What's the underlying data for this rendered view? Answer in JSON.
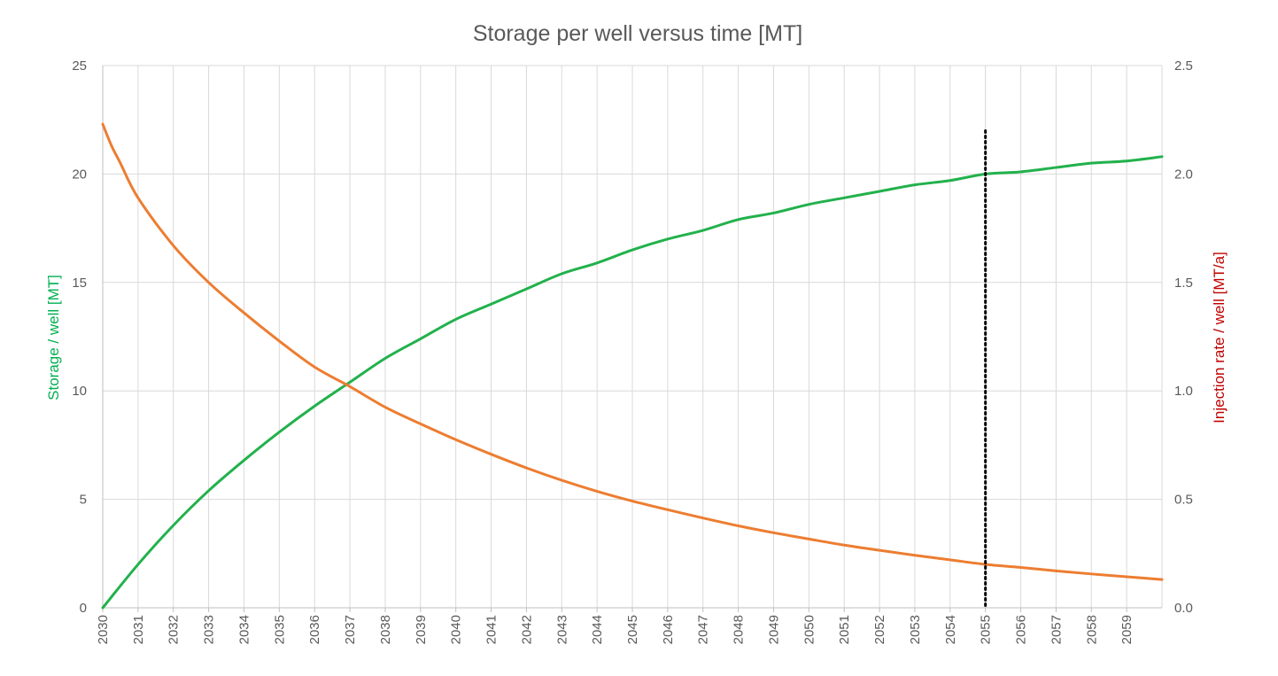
{
  "chart_data": {
    "type": "line",
    "title": "Storage per well versus time [MT]",
    "xlim": [
      2030,
      2060
    ],
    "x_tick_labels": [
      "2030",
      "2031",
      "2032",
      "2033",
      "2034",
      "2035",
      "2036",
      "2037",
      "2038",
      "2039",
      "2040",
      "2041",
      "2042",
      "2043",
      "2044",
      "2045",
      "2046",
      "2047",
      "2048",
      "2049",
      "2050",
      "2051",
      "2052",
      "2053",
      "2054",
      "2055",
      "2056",
      "2057",
      "2058",
      "2059"
    ],
    "y_left": {
      "label": "Storage / well [MT]",
      "color": "#00B050",
      "ylim": [
        0,
        25
      ],
      "tick_labels": [
        "0",
        "5",
        "10",
        "15",
        "20",
        "25"
      ]
    },
    "y_right": {
      "label": "Injection rate / well [MT/a]",
      "color": "#C00000",
      "ylim": [
        0,
        2.5
      ],
      "tick_labels": [
        "0.0",
        "0.5",
        "1.0",
        "1.5",
        "2.0",
        "2.5"
      ]
    },
    "grid": true,
    "series": [
      {
        "axis": "left",
        "color": "#22B14C",
        "x": [
          2030,
          2031,
          2032,
          2033,
          2034,
          2035,
          2036,
          2037,
          2038,
          2039,
          2040,
          2041,
          2042,
          2043,
          2044,
          2045,
          2046,
          2047,
          2048,
          2049,
          2050,
          2051,
          2052,
          2053,
          2054,
          2055,
          2056,
          2057,
          2058,
          2059,
          2060
        ],
        "values": [
          0.0,
          2.0,
          3.8,
          5.4,
          6.8,
          8.1,
          9.3,
          10.4,
          11.5,
          12.4,
          13.3,
          14.0,
          14.7,
          15.4,
          15.9,
          16.5,
          17.0,
          17.4,
          17.9,
          18.2,
          18.6,
          18.9,
          19.2,
          19.5,
          19.7,
          20.0,
          20.1,
          20.3,
          20.5,
          20.6,
          20.8
        ]
      },
      {
        "axis": "right",
        "color": "#ED7D31",
        "x": [
          2030,
          2030.25,
          2030.5,
          2031,
          2032,
          2033,
          2034,
          2035,
          2036,
          2037,
          2038,
          2039,
          2040,
          2041,
          2042,
          2043,
          2044,
          2045,
          2046,
          2047,
          2048,
          2049,
          2050,
          2051,
          2052,
          2053,
          2054,
          2055,
          2056,
          2057,
          2058,
          2059,
          2060
        ],
        "values": [
          2.23,
          2.13,
          2.05,
          1.89,
          1.67,
          1.5,
          1.36,
          1.23,
          1.11,
          1.02,
          0.925,
          0.848,
          0.775,
          0.708,
          0.645,
          0.588,
          0.537,
          0.492,
          0.452,
          0.414,
          0.378,
          0.346,
          0.317,
          0.289,
          0.265,
          0.242,
          0.221,
          0.2,
          0.186,
          0.17,
          0.156,
          0.143,
          0.13
        ]
      }
    ],
    "reference_lines": [
      {
        "x": 2055,
        "y_top": 22,
        "style": "dotted",
        "color": "#000000"
      }
    ]
  }
}
